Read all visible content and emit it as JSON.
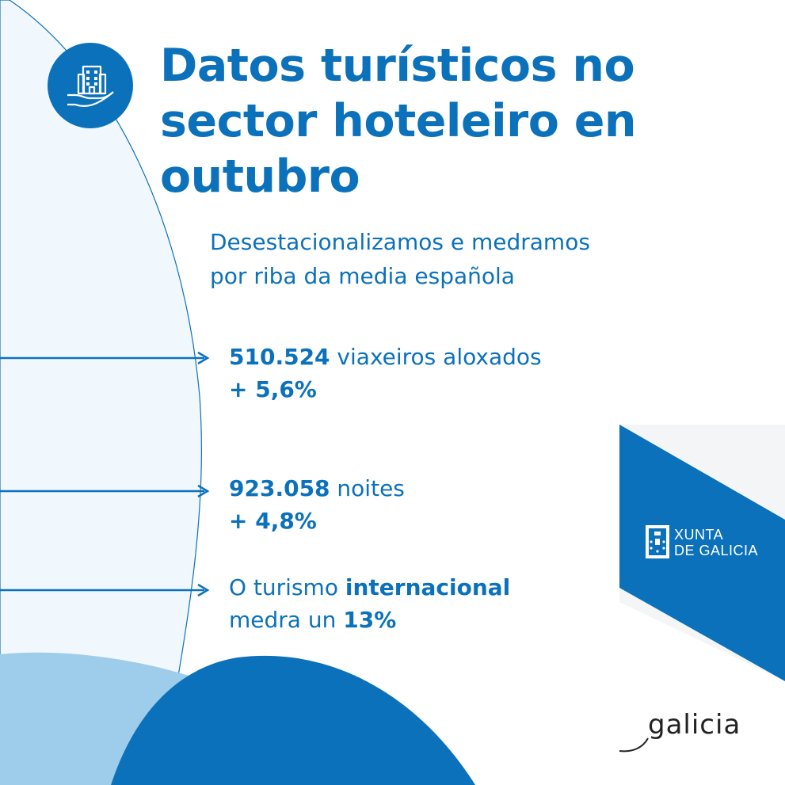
{
  "title": "Datos turísticos no sector hoteleiro en outubro",
  "subtitle_line1": "Desestacionalizamos e medramos",
  "subtitle_line2": "por riba da media española",
  "stats": [
    {
      "value": "510.524",
      "label": " viaxeiros aloxados",
      "change": "+ 5,6%"
    },
    {
      "value": "923.058",
      "label": " noites",
      "change": "+ 4,8%"
    }
  ],
  "international": {
    "prefix": "O turismo ",
    "highlight": "internacional",
    "line2_prefix": "medra un ",
    "value": "13%"
  },
  "logo_xunta_line1": "XUNTA",
  "logo_xunta_line2": "DE GALICIA",
  "logo_galicia": "galicia",
  "icons": {
    "header": "hotel-in-hand-icon",
    "arrow": "arrow-right-icon",
    "crest": "galicia-crest-icon"
  },
  "colors": {
    "primary": "#0b71ba",
    "light_blue": "#f0f8fd",
    "mid_blue": "#9ecdeb",
    "text_dark": "#222222"
  }
}
